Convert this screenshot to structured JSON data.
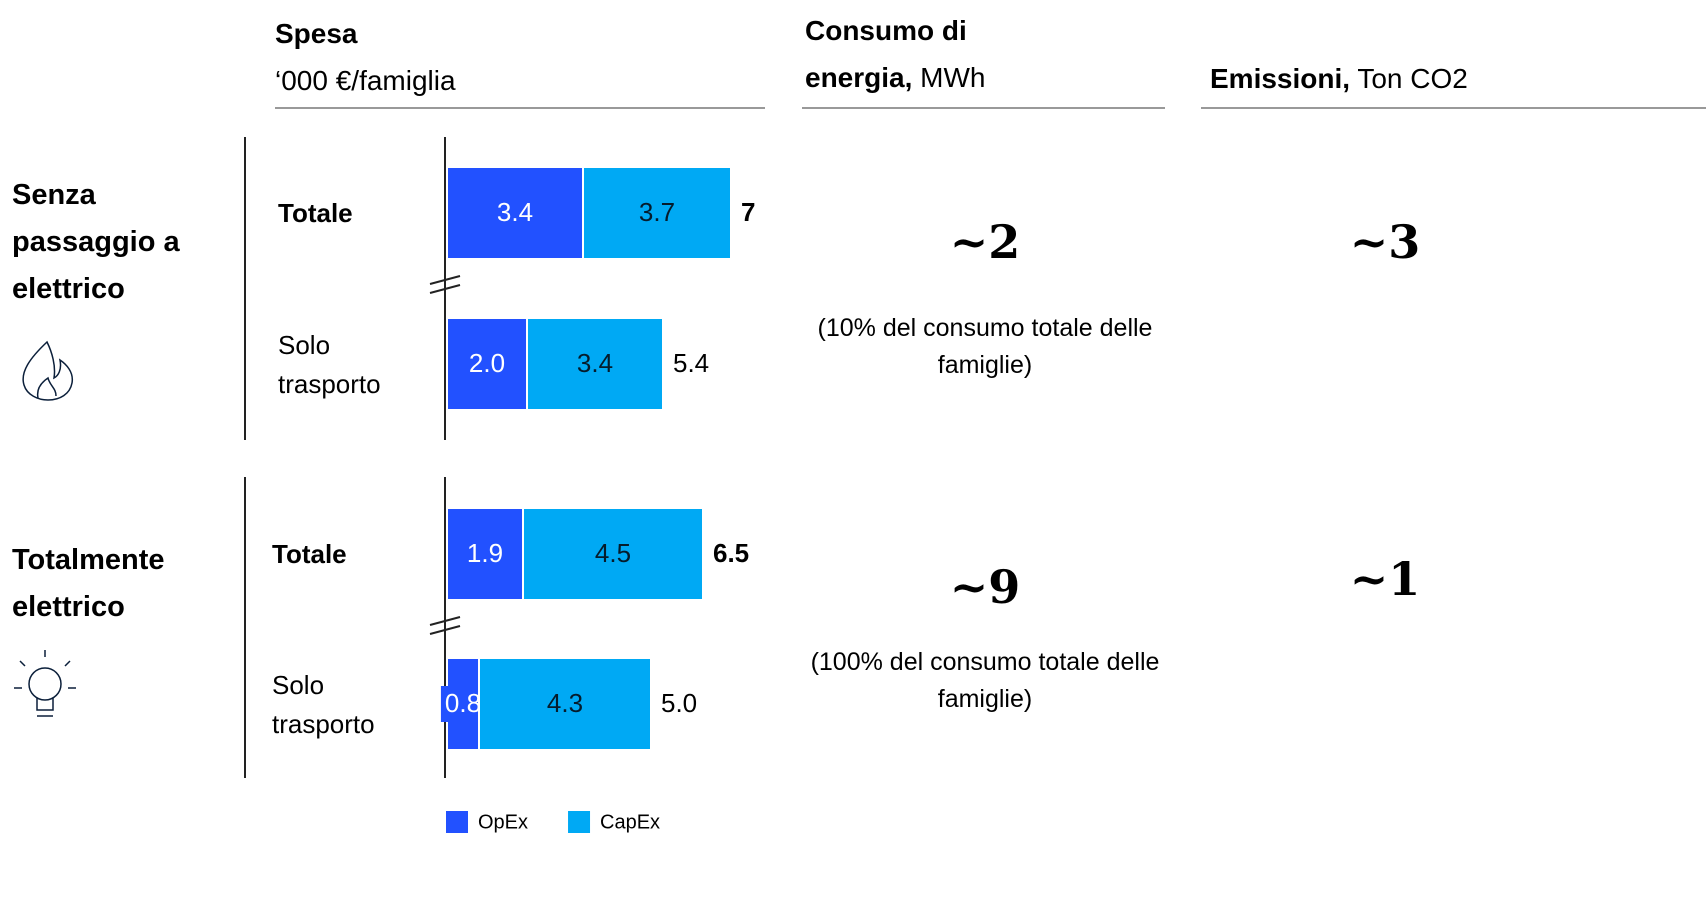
{
  "chart_data": {
    "type": "bar",
    "orientation": "horizontal",
    "stacked": true,
    "title": "Spesa",
    "subtitle": "‘000 €/famiglia",
    "groups": [
      "Senza passaggio a elettrico",
      "Totalmente elettrico"
    ],
    "categories": [
      "Totale",
      "Solo trasporto",
      "Totale",
      "Solo trasporto"
    ],
    "series": [
      {
        "name": "OpEx",
        "color": "#2251ff",
        "values": [
          3.4,
          2.0,
          1.9,
          0.8
        ],
        "value_labels": [
          "3.4",
          "2.0",
          "1.9",
          "0.8"
        ]
      },
      {
        "name": "CapEx",
        "color": "#00a9f4",
        "values": [
          3.7,
          3.4,
          4.5,
          4.3
        ]
      }
    ],
    "totals": [
      7,
      5.4,
      6.5,
      5.0
    ],
    "total_labels": [
      "7",
      "5.4",
      "6.5",
      "5.0"
    ]
  },
  "energy": {
    "heading": "Consumo di energia,",
    "unit": "MWh",
    "values": [
      "~2",
      "~9"
    ],
    "notes": [
      "(10% del consumo totale delle famiglie)",
      "(100% del consumo totale delle famiglie)"
    ]
  },
  "emissions": {
    "heading": "Emissioni,",
    "unit": "Ton CO2",
    "values": [
      "~3",
      "~1"
    ]
  }
}
